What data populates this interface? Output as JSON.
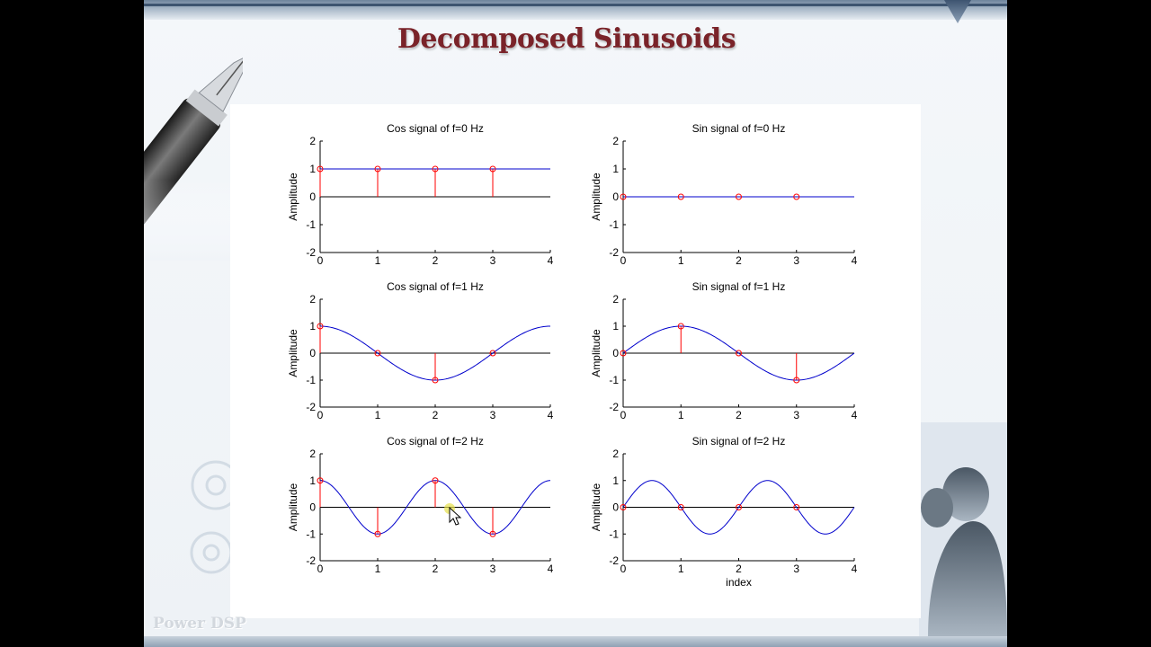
{
  "slide": {
    "title": "Decomposed Sinusoids",
    "footer": "Power DSP"
  },
  "colors": {
    "curve": "#0000cc",
    "stem": "#ff0000",
    "axis": "#000000",
    "title_text": "#7a2329"
  },
  "icons": [
    "fountain-pen-icon",
    "gear-icon",
    "mouse-cursor-icon"
  ],
  "chart_data": [
    {
      "type": "line",
      "title": "Cos signal of f=0 Hz",
      "ylabel": "Amplitude",
      "xlabel": "",
      "xlim": [
        0,
        4
      ],
      "ylim": [
        -2,
        2
      ],
      "xticks": [
        "0",
        "1",
        "2",
        "3",
        "4"
      ],
      "yticks": [
        "-2",
        "-1",
        "0",
        "1",
        "2"
      ],
      "function": "cos",
      "frequency": 0,
      "samples": {
        "x": [
          0,
          1,
          2,
          3
        ],
        "y": [
          1,
          1,
          1,
          1
        ]
      }
    },
    {
      "type": "line",
      "title": "Sin signal of f=0 Hz",
      "ylabel": "Amplitude",
      "xlabel": "",
      "xlim": [
        0,
        4
      ],
      "ylim": [
        -2,
        2
      ],
      "xticks": [
        "0",
        "1",
        "2",
        "3",
        "4"
      ],
      "yticks": [
        "-2",
        "-1",
        "0",
        "1",
        "2"
      ],
      "function": "sin",
      "frequency": 0,
      "samples": {
        "x": [
          0,
          1,
          2,
          3
        ],
        "y": [
          0,
          0,
          0,
          0
        ]
      }
    },
    {
      "type": "line",
      "title": "Cos signal of f=1 Hz",
      "ylabel": "Amplitude",
      "xlabel": "",
      "xlim": [
        0,
        4
      ],
      "ylim": [
        -2,
        2
      ],
      "xticks": [
        "0",
        "1",
        "2",
        "3",
        "4"
      ],
      "yticks": [
        "-2",
        "-1",
        "0",
        "1",
        "2"
      ],
      "function": "cos",
      "frequency": 1,
      "samples": {
        "x": [
          0,
          1,
          2,
          3
        ],
        "y": [
          1,
          0,
          -1,
          0
        ]
      }
    },
    {
      "type": "line",
      "title": "Sin signal of f=1 Hz",
      "ylabel": "Amplitude",
      "xlabel": "",
      "xlim": [
        0,
        4
      ],
      "ylim": [
        -2,
        2
      ],
      "xticks": [
        "0",
        "1",
        "2",
        "3",
        "4"
      ],
      "yticks": [
        "-2",
        "-1",
        "0",
        "1",
        "2"
      ],
      "function": "sin",
      "frequency": 1,
      "samples": {
        "x": [
          0,
          1,
          2,
          3
        ],
        "y": [
          0,
          1,
          0,
          -1
        ]
      }
    },
    {
      "type": "line",
      "title": "Cos signal of f=2 Hz",
      "ylabel": "Amplitude",
      "xlabel": "",
      "xlim": [
        0,
        4
      ],
      "ylim": [
        -2,
        2
      ],
      "xticks": [
        "0",
        "1",
        "2",
        "3",
        "4"
      ],
      "yticks": [
        "-2",
        "-1",
        "0",
        "1",
        "2"
      ],
      "function": "cos",
      "frequency": 2,
      "samples": {
        "x": [
          0,
          1,
          2,
          3
        ],
        "y": [
          1,
          -1,
          1,
          -1
        ]
      }
    },
    {
      "type": "line",
      "title": "Sin signal of f=2 Hz",
      "ylabel": "Amplitude",
      "xlabel": "index",
      "xlim": [
        0,
        4
      ],
      "ylim": [
        -2,
        2
      ],
      "xticks": [
        "0",
        "1",
        "2",
        "3",
        "4"
      ],
      "yticks": [
        "-2",
        "-1",
        "0",
        "1",
        "2"
      ],
      "function": "sin",
      "frequency": 2,
      "samples": {
        "x": [
          0,
          1,
          2,
          3
        ],
        "y": [
          0,
          0,
          0,
          0
        ]
      }
    }
  ]
}
